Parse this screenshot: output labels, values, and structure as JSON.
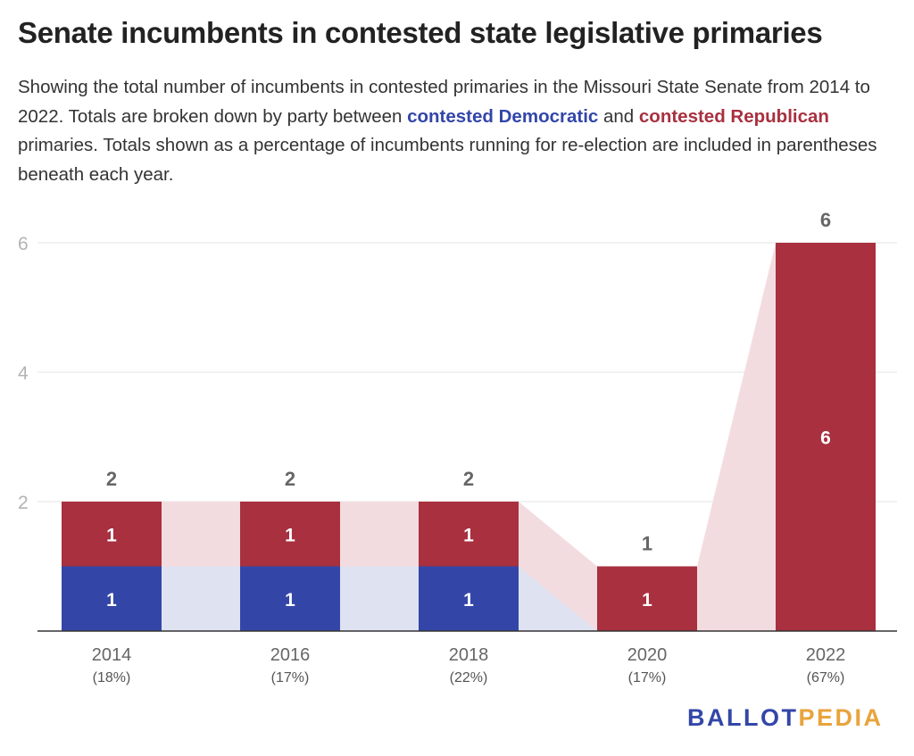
{
  "header": {
    "title": "Senate incumbents in contested state legislative primaries",
    "subtitle_part1": "Showing the total number of incumbents in contested primaries in the Missouri State Senate from 2014 to 2022. Totals are broken down by party between ",
    "subtitle_dem": "contested Democratic",
    "subtitle_part2": " and ",
    "subtitle_rep": "contested Republican",
    "subtitle_part3": " primaries. Totals shown as a percentage of incumbents running for re-election are included in parentheses beneath each year."
  },
  "logo": {
    "part1": "BALLOT",
    "part2": "PEDIA"
  },
  "colors": {
    "democratic": "#3346a8",
    "republican": "#a8303f",
    "democratic_band": "#dfe2f1",
    "republican_band": "#f3dcdf",
    "axis_tick_text": "#b3b3b3",
    "gridline": "#e6e6e6"
  },
  "chart_data": {
    "type": "bar",
    "stacked": true,
    "categories": [
      "2014",
      "2016",
      "2018",
      "2020",
      "2022"
    ],
    "category_sublabels": [
      "(18%)",
      "(17%)",
      "(22%)",
      "(17%)",
      "(67%)"
    ],
    "series": [
      {
        "name": "contested Democratic",
        "values": [
          1,
          1,
          1,
          0,
          0
        ]
      },
      {
        "name": "contested Republican",
        "values": [
          1,
          1,
          1,
          1,
          6
        ]
      }
    ],
    "totals": [
      2,
      2,
      2,
      1,
      6
    ],
    "y_ticks": [
      2,
      4,
      6
    ],
    "ylim": [
      0,
      6
    ],
    "grid": true,
    "legend": "inline in subtitle",
    "xlabel": "",
    "ylabel": ""
  }
}
